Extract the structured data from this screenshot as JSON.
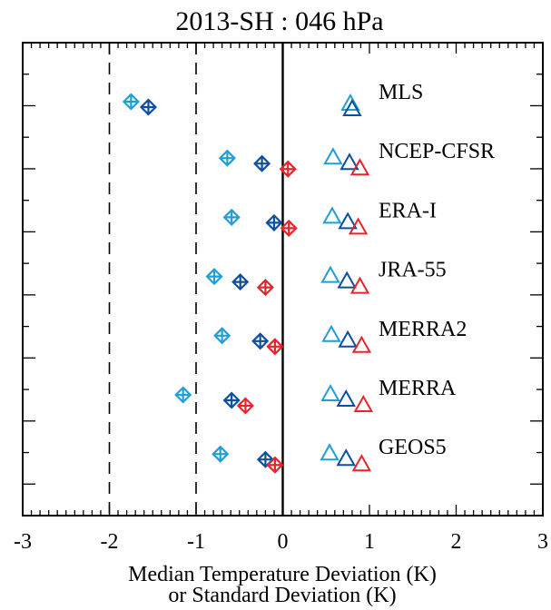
{
  "chart_data": {
    "type": "scatter",
    "title": "2013-SH :  046 hPa",
    "xlabel_line1": "Median Temperature Deviation (K)",
    "xlabel_line2": "or Standard Deviation (K)",
    "ylabel": "",
    "xlim": [
      -3,
      3
    ],
    "x_ticks": [
      -3,
      -2,
      -1,
      0,
      1,
      2,
      3
    ],
    "x_tick_labels": [
      "-3",
      "-2",
      "-1",
      "0",
      "1",
      "2",
      "3"
    ],
    "reference_lines": [
      {
        "x": -2,
        "style": "dashed"
      },
      {
        "x": -1,
        "style": "dashed"
      },
      {
        "x": 0,
        "style": "solid"
      }
    ],
    "rows": [
      {
        "label": "MLS",
        "diamonds": [
          {
            "x": -1.75,
            "color": "#1e9fd8"
          },
          {
            "x": -1.55,
            "color": "#0d4f9e"
          }
        ],
        "triangles": [
          {
            "x": 0.78,
            "color": "#1e9fd8"
          },
          {
            "x": 0.8,
            "color": "#0d4f9e"
          }
        ]
      },
      {
        "label": "NCEP-CFSR",
        "diamonds": [
          {
            "x": -0.64,
            "color": "#1e9fd8"
          },
          {
            "x": -0.24,
            "color": "#0d4f9e"
          },
          {
            "x": 0.06,
            "color": "#e8242c"
          }
        ],
        "triangles": [
          {
            "x": 0.58,
            "color": "#1e9fd8"
          },
          {
            "x": 0.77,
            "color": "#0d4f9e"
          },
          {
            "x": 0.89,
            "color": "#e8242c"
          }
        ]
      },
      {
        "label": "ERA-I",
        "diamonds": [
          {
            "x": -0.59,
            "color": "#1e9fd8"
          },
          {
            "x": -0.1,
            "color": "#0d4f9e"
          },
          {
            "x": 0.07,
            "color": "#e8242c"
          }
        ],
        "triangles": [
          {
            "x": 0.57,
            "color": "#1e9fd8"
          },
          {
            "x": 0.75,
            "color": "#0d4f9e"
          },
          {
            "x": 0.87,
            "color": "#e8242c"
          }
        ]
      },
      {
        "label": "JRA-55",
        "diamonds": [
          {
            "x": -0.79,
            "color": "#1e9fd8"
          },
          {
            "x": -0.49,
            "color": "#0d4f9e"
          },
          {
            "x": -0.2,
            "color": "#e8242c"
          }
        ],
        "triangles": [
          {
            "x": 0.55,
            "color": "#1e9fd8"
          },
          {
            "x": 0.74,
            "color": "#0d4f9e"
          },
          {
            "x": 0.89,
            "color": "#e8242c"
          }
        ]
      },
      {
        "label": "MERRA2",
        "diamonds": [
          {
            "x": -0.7,
            "color": "#1e9fd8"
          },
          {
            "x": -0.26,
            "color": "#0d4f9e"
          },
          {
            "x": -0.09,
            "color": "#e8242c"
          }
        ],
        "triangles": [
          {
            "x": 0.56,
            "color": "#1e9fd8"
          },
          {
            "x": 0.75,
            "color": "#0d4f9e"
          },
          {
            "x": 0.91,
            "color": "#e8242c"
          }
        ]
      },
      {
        "label": "MERRA",
        "diamonds": [
          {
            "x": -1.15,
            "color": "#1e9fd8"
          },
          {
            "x": -0.59,
            "color": "#0d4f9e"
          },
          {
            "x": -0.43,
            "color": "#e8242c"
          }
        ],
        "triangles": [
          {
            "x": 0.55,
            "color": "#1e9fd8"
          },
          {
            "x": 0.73,
            "color": "#0d4f9e"
          },
          {
            "x": 0.93,
            "color": "#e8242c"
          }
        ]
      },
      {
        "label": "GEOS5",
        "diamonds": [
          {
            "x": -0.72,
            "color": "#1e9fd8"
          },
          {
            "x": -0.2,
            "color": "#0d4f9e"
          },
          {
            "x": -0.09,
            "color": "#e8242c"
          }
        ],
        "triangles": [
          {
            "x": 0.54,
            "color": "#1e9fd8"
          },
          {
            "x": 0.73,
            "color": "#0d4f9e"
          },
          {
            "x": 0.91,
            "color": "#e8242c"
          }
        ]
      }
    ],
    "colors": {
      "light_blue": "#1e9fd8",
      "dark_blue": "#0d4f9e",
      "red": "#e8242c"
    }
  }
}
